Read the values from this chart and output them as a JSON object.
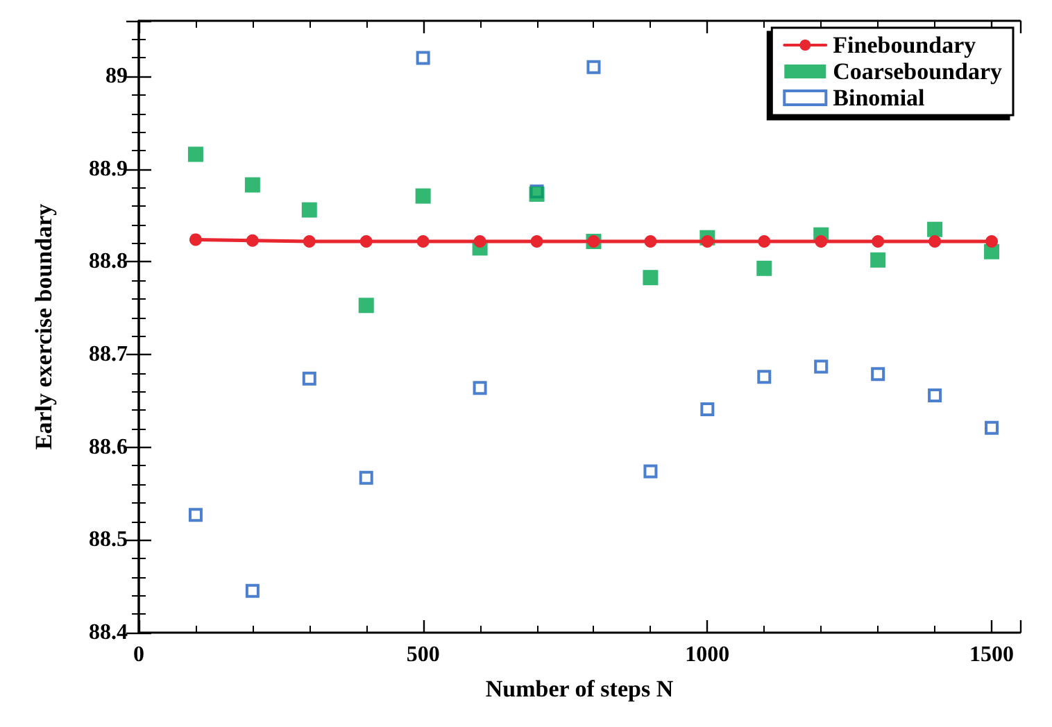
{
  "chart_data": {
    "type": "line",
    "xlabel": "Number of steps N",
    "ylabel": "Early exercise boundary",
    "x": [
      100,
      200,
      300,
      400,
      500,
      600,
      700,
      800,
      900,
      1000,
      1100,
      1200,
      1300,
      1400,
      1500
    ],
    "series": [
      {
        "name": "Fineboundary",
        "color": "#e8262f",
        "marker": "circle",
        "line_style": "solid",
        "values": [
          88.824,
          88.823,
          88.822,
          88.822,
          88.822,
          88.822,
          88.822,
          88.822,
          88.822,
          88.822,
          88.822,
          88.822,
          88.822,
          88.822,
          88.822
        ]
      },
      {
        "name": "Coarseboundary",
        "type": "scatter",
        "color": "#00a651",
        "marker": "square",
        "values": [
          88.916,
          88.883,
          88.856,
          88.753,
          88.871,
          88.815,
          88.873,
          88.822,
          88.783,
          88.826,
          88.793,
          88.829,
          88.802,
          88.835,
          88.811
        ]
      },
      {
        "name": "Binomial",
        "type": "scatter",
        "color": "#1f5fbf",
        "marker": "square",
        "values": [
          88.527,
          88.445,
          88.674,
          88.567,
          89.02,
          88.664,
          88.876,
          89.01,
          88.574,
          88.641,
          88.676,
          88.687,
          88.679,
          88.656,
          88.621
        ]
      }
    ],
    "xlim": [
      0,
      1550
    ],
    "xticks": [
      0,
      500,
      1000,
      1500
    ],
    "ylim": [
      88.4,
      89.06
    ],
    "yticks": [
      88.4,
      88.5,
      88.6,
      88.7,
      88.8,
      88.9,
      89
    ],
    "grid": false,
    "legend": "top right"
  }
}
